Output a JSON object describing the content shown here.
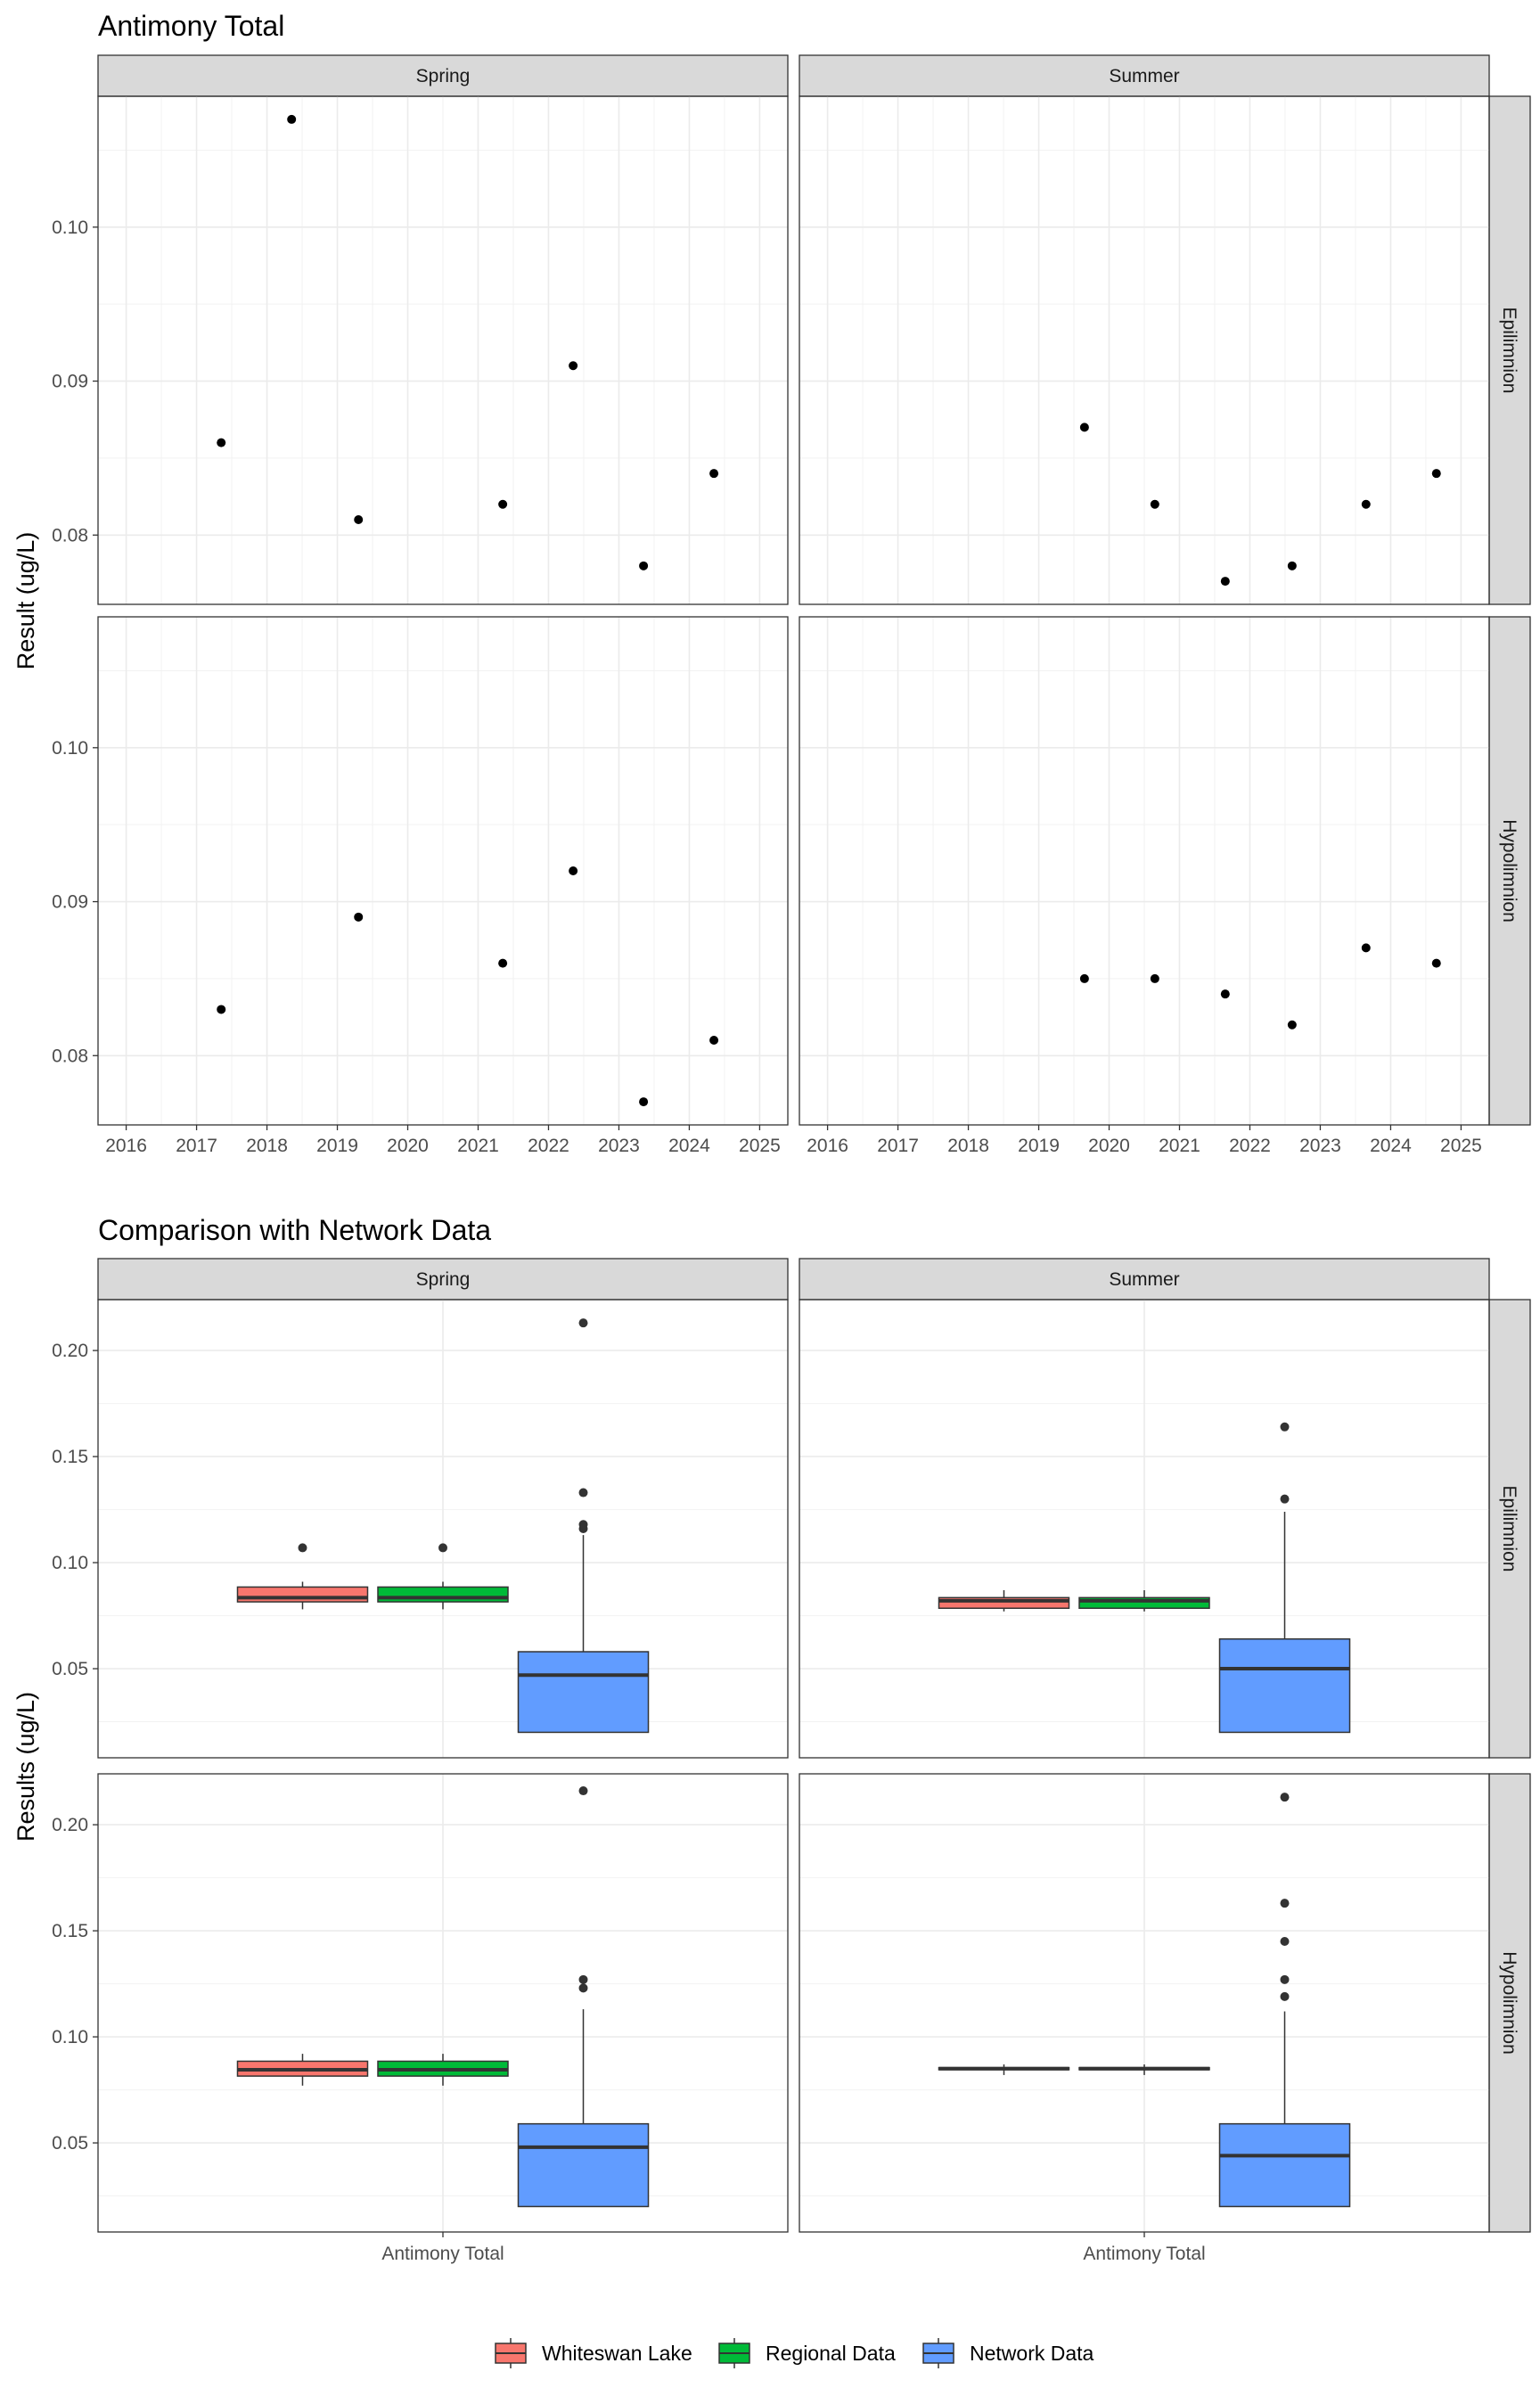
{
  "chart_data": [
    {
      "type": "scatter",
      "title": "Antimony Total",
      "ylabel": "Result (ug/L)",
      "xlabel": "",
      "columns": [
        "Spring",
        "Summer"
      ],
      "rows": [
        "Epilimnion",
        "Hypolimnion"
      ],
      "x_ticks": [
        "2016",
        "2017",
        "2018",
        "2019",
        "2020",
        "2021",
        "2022",
        "2023",
        "2024",
        "2025"
      ],
      "xlim": [
        2015.6,
        2025.4
      ],
      "y_ticks": [
        "0.08",
        "0.09",
        "0.10"
      ],
      "ylim": [
        0.0755,
        0.1085
      ],
      "grid": true,
      "panels": [
        {
          "column": "Spring",
          "row": "Epilimnion",
          "points": [
            {
              "x": 2017.35,
              "y": 0.086
            },
            {
              "x": 2018.35,
              "y": 0.107
            },
            {
              "x": 2019.3,
              "y": 0.081
            },
            {
              "x": 2021.35,
              "y": 0.082
            },
            {
              "x": 2022.35,
              "y": 0.091
            },
            {
              "x": 2023.35,
              "y": 0.078
            },
            {
              "x": 2024.35,
              "y": 0.084
            }
          ]
        },
        {
          "column": "Summer",
          "row": "Epilimnion",
          "points": [
            {
              "x": 2019.65,
              "y": 0.087
            },
            {
              "x": 2020.65,
              "y": 0.082
            },
            {
              "x": 2021.65,
              "y": 0.077
            },
            {
              "x": 2022.6,
              "y": 0.078
            },
            {
              "x": 2023.65,
              "y": 0.082
            },
            {
              "x": 2024.65,
              "y": 0.084
            }
          ]
        },
        {
          "column": "Spring",
          "row": "Hypolimnion",
          "points": [
            {
              "x": 2017.35,
              "y": 0.083
            },
            {
              "x": 2019.3,
              "y": 0.089
            },
            {
              "x": 2021.35,
              "y": 0.086
            },
            {
              "x": 2022.35,
              "y": 0.092
            },
            {
              "x": 2023.35,
              "y": 0.077
            },
            {
              "x": 2024.35,
              "y": 0.081
            }
          ]
        },
        {
          "column": "Summer",
          "row": "Hypolimnion",
          "points": [
            {
              "x": 2019.65,
              "y": 0.085
            },
            {
              "x": 2020.65,
              "y": 0.085
            },
            {
              "x": 2021.65,
              "y": 0.084
            },
            {
              "x": 2022.6,
              "y": 0.082
            },
            {
              "x": 2023.65,
              "y": 0.087
            },
            {
              "x": 2024.65,
              "y": 0.086
            }
          ]
        }
      ]
    },
    {
      "type": "box",
      "title": "Comparison with Network Data",
      "ylabel": "Results (ug/L)",
      "xlabel": "",
      "category": "Antimony Total",
      "columns": [
        "Spring",
        "Summer"
      ],
      "rows": [
        "Epilimnion",
        "Hypolimnion"
      ],
      "y_ticks": [
        "0.05",
        "0.10",
        "0.15",
        "0.20"
      ],
      "ylim": [
        0.008,
        0.224
      ],
      "grid": true,
      "series": [
        {
          "name": "Whiteswan Lake",
          "color": "#F8766D"
        },
        {
          "name": "Regional Data",
          "color": "#00BA38"
        },
        {
          "name": "Network Data",
          "color": "#619CFF"
        }
      ],
      "legend_position": "bottom",
      "panels": [
        {
          "column": "Spring",
          "row": "Epilimnion",
          "boxes": [
            {
              "series": "Whiteswan Lake",
              "min": 0.078,
              "q1": 0.0815,
              "median": 0.0835,
              "q3": 0.0885,
              "max": 0.091,
              "outliers": [
                0.107
              ]
            },
            {
              "series": "Regional Data",
              "min": 0.078,
              "q1": 0.0815,
              "median": 0.0835,
              "q3": 0.0885,
              "max": 0.091,
              "outliers": [
                0.107
              ]
            },
            {
              "series": "Network Data",
              "min": 0.02,
              "q1": 0.02,
              "median": 0.047,
              "q3": 0.058,
              "max": 0.113,
              "outliers": [
                0.116,
                0.118,
                0.133,
                0.213
              ]
            }
          ]
        },
        {
          "column": "Summer",
          "row": "Epilimnion",
          "boxes": [
            {
              "series": "Whiteswan Lake",
              "min": 0.077,
              "q1": 0.0785,
              "median": 0.082,
              "q3": 0.0835,
              "max": 0.087,
              "outliers": []
            },
            {
              "series": "Regional Data",
              "min": 0.077,
              "q1": 0.0785,
              "median": 0.082,
              "q3": 0.0835,
              "max": 0.087,
              "outliers": []
            },
            {
              "series": "Network Data",
              "min": 0.02,
              "q1": 0.02,
              "median": 0.05,
              "q3": 0.064,
              "max": 0.124,
              "outliers": [
                0.13,
                0.164
              ]
            }
          ]
        },
        {
          "column": "Spring",
          "row": "Hypolimnion",
          "boxes": [
            {
              "series": "Whiteswan Lake",
              "min": 0.077,
              "q1": 0.0815,
              "median": 0.0845,
              "q3": 0.0885,
              "max": 0.092,
              "outliers": []
            },
            {
              "series": "Regional Data",
              "min": 0.077,
              "q1": 0.0815,
              "median": 0.0845,
              "q3": 0.0885,
              "max": 0.092,
              "outliers": []
            },
            {
              "series": "Network Data",
              "min": 0.02,
              "q1": 0.02,
              "median": 0.048,
              "q3": 0.059,
              "max": 0.113,
              "outliers": [
                0.123,
                0.127,
                0.216
              ]
            }
          ]
        },
        {
          "column": "Summer",
          "row": "Hypolimnion",
          "boxes": [
            {
              "series": "Whiteswan Lake",
              "min": 0.082,
              "q1": 0.0845,
              "median": 0.085,
              "q3": 0.0855,
              "max": 0.087,
              "outliers": []
            },
            {
              "series": "Regional Data",
              "min": 0.082,
              "q1": 0.0845,
              "median": 0.085,
              "q3": 0.0855,
              "max": 0.087,
              "outliers": []
            },
            {
              "series": "Network Data",
              "min": 0.02,
              "q1": 0.02,
              "median": 0.044,
              "q3": 0.059,
              "max": 0.112,
              "outliers": [
                0.119,
                0.127,
                0.145,
                0.163,
                0.213
              ]
            }
          ]
        }
      ]
    }
  ]
}
